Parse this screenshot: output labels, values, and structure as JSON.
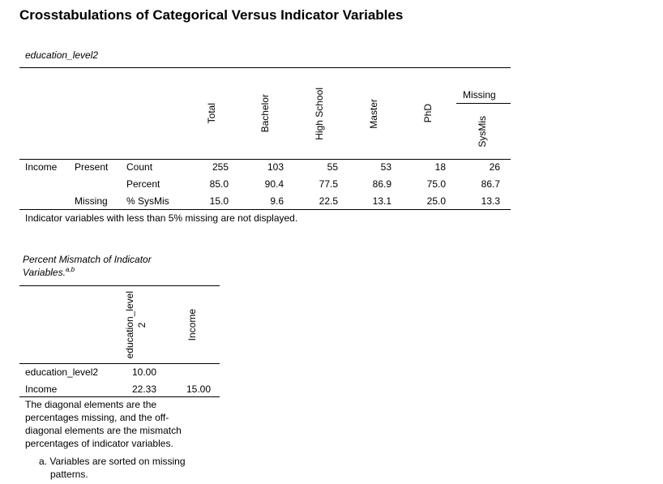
{
  "title": "Crosstabulations of Categorical Versus Indicator Variables",
  "crosstab": {
    "caption": "education_level2",
    "missing_group": "Missing",
    "columns": [
      "Total",
      "Bachelor",
      "High School",
      "Master",
      "PhD",
      "SysMis"
    ],
    "row_variable": "Income",
    "rows": [
      {
        "group": "Present",
        "stat": "Count",
        "values": [
          "255",
          "103",
          "55",
          "53",
          "18",
          "26"
        ]
      },
      {
        "group": "",
        "stat": "Percent",
        "values": [
          "85.0",
          "90.4",
          "77.5",
          "86.9",
          "75.0",
          "86.7"
        ]
      },
      {
        "group": "Missing",
        "stat": "% SysMis",
        "values": [
          "15.0",
          "9.6",
          "22.5",
          "13.1",
          "25.0",
          "13.3"
        ]
      }
    ],
    "footnote": "Indicator variables with less than 5% missing are not displayed."
  },
  "mismatch": {
    "caption_line1": "Percent Mismatch of Indicator",
    "caption_line2": "Variables.",
    "caption_sup": "a,b",
    "columns": [
      "education_level\n2",
      "Income"
    ],
    "rows": [
      {
        "label": "education_level2",
        "values": [
          "10.00",
          ""
        ]
      },
      {
        "label": "Income",
        "values": [
          "22.33",
          "15.00"
        ]
      }
    ],
    "note_lines": [
      "The diagonal elements are the",
      "percentages missing, and the off-",
      "diagonal elements are the mismatch",
      "percentages of indicator variables."
    ],
    "footnote_a_line1": "a. Variables are sorted on missing",
    "footnote_a_line2": "patterns."
  }
}
